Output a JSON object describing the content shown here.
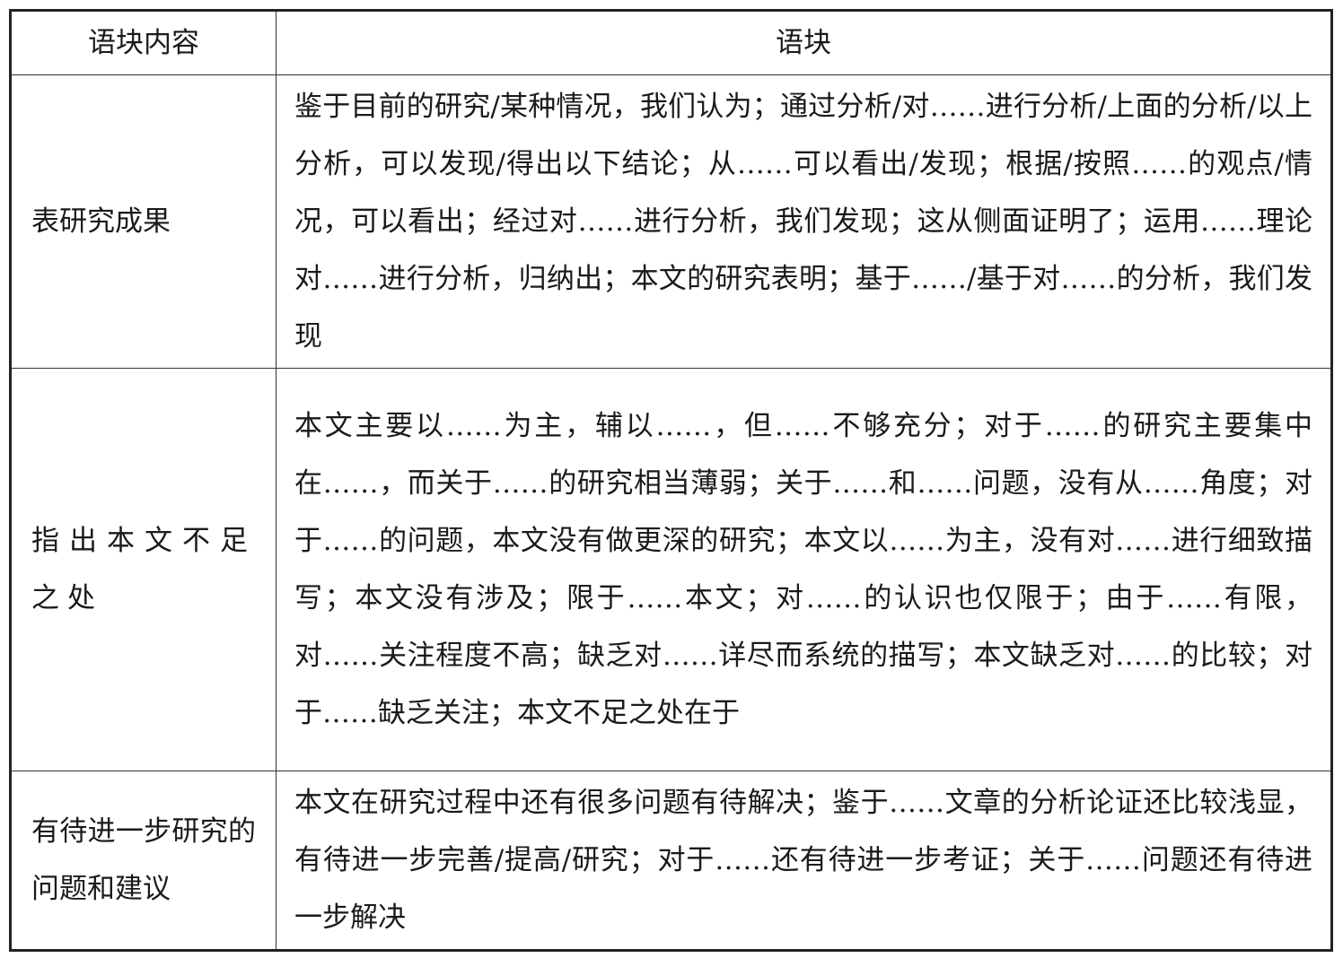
{
  "table": {
    "headers": [
      "语块内容",
      "语块"
    ],
    "rows": [
      {
        "category": "表研究成果",
        "chunks": "鉴于目前的研究/某种情况，我们认为；通过分析/对……进行分析/上面的分析/以上分析，可以发现/得出以下结论；从……可以看出/发现；根据/按照……的观点/情况，可以看出；经过对……进行分析，我们发现；这从侧面证明了；运用……理论对……进行分析，归纳出；本文的研究表明；基于……/基于对……的分析，我们发现"
      },
      {
        "category": "指出本文不足之处",
        "chunks": "本文主要以……为主，辅以……，但……不够充分；对于……的研究主要集中在……，而关于……的研究相当薄弱；关于……和……问题，没有从……角度；对于……的问题，本文没有做更深的研究；本文以……为主，没有对……进行细致描写；本文没有涉及；限于……本文；对……的认识也仅限于；由于……有限，对……关注程度不高；缺乏对……详尽而系统的描写；本文缺乏对……的比较；对于……缺乏关注；本文不足之处在于"
      },
      {
        "category": "有待进一步研究的问题和建议",
        "chunks": "本文在研究过程中还有很多问题有待解决；鉴于……文章的分析论证还比较浅显，有待进一步完善/提高/研究；对于……还有待进一步考证；关于……问题还有待进一步解决"
      }
    ]
  }
}
